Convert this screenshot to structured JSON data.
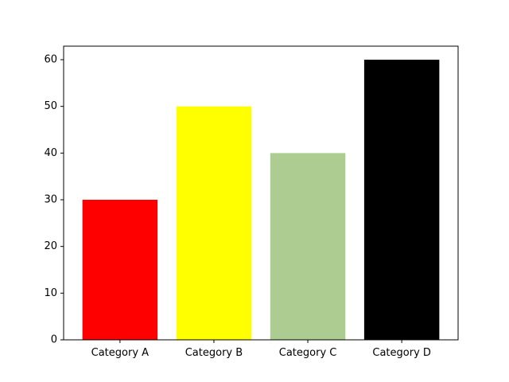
{
  "chart_data": {
    "type": "bar",
    "title": "",
    "xlabel": "",
    "ylabel": "",
    "categories": [
      "Category A",
      "Category B",
      "Category C",
      "Category D"
    ],
    "values": [
      30,
      50,
      40,
      60
    ],
    "colors": [
      "#ff0000",
      "#ffff00",
      "#adcc92",
      "#000000"
    ],
    "ylim": [
      0,
      62.9
    ],
    "yticks": [
      0,
      10,
      20,
      30,
      40,
      50,
      60
    ],
    "grid": false,
    "legend": "none"
  }
}
